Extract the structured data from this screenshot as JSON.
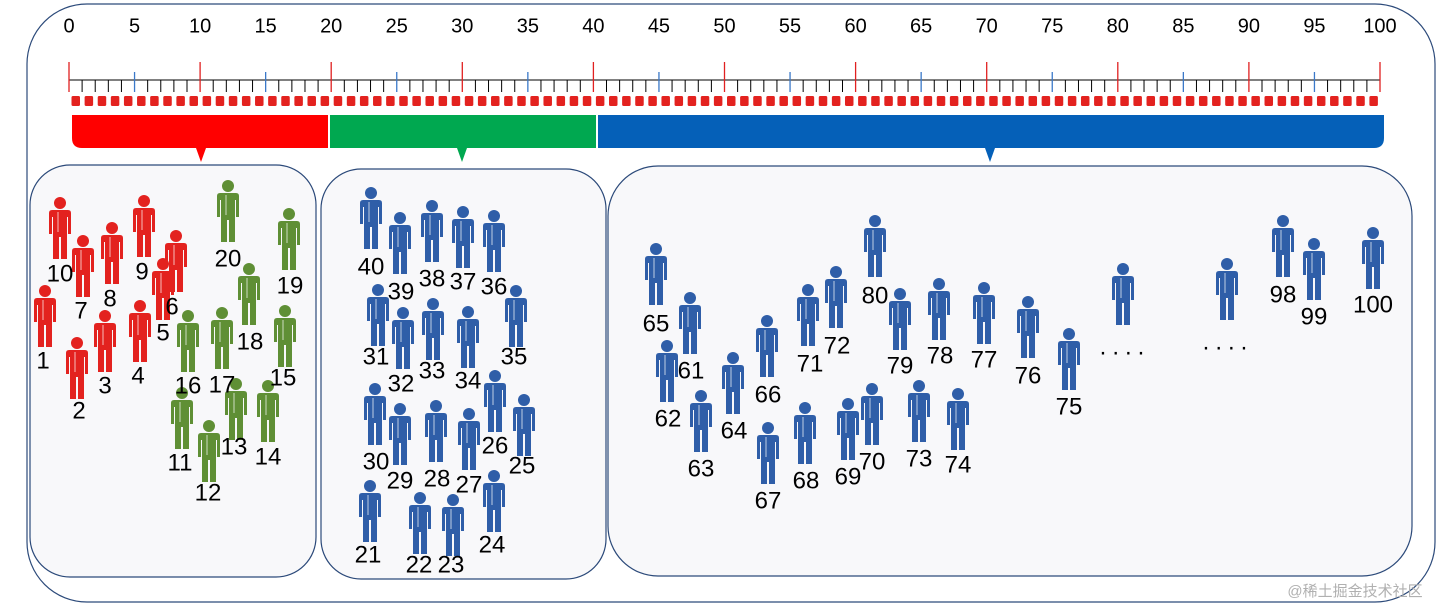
{
  "ruler": {
    "range": [
      0,
      100
    ],
    "ticks": [
      0,
      5,
      10,
      15,
      20,
      25,
      30,
      35,
      40,
      45,
      50,
      55,
      60,
      65,
      70,
      75,
      80,
      85,
      90,
      95,
      100
    ]
  },
  "groups": [
    {
      "color": "#e3221f",
      "people": [
        1,
        2,
        3,
        4,
        5,
        6,
        7,
        8,
        9,
        10
      ]
    },
    {
      "color": "#5f8f35",
      "people": [
        11,
        12,
        13,
        14,
        15,
        16,
        17,
        18,
        19,
        20
      ]
    },
    {
      "color": "#2f5ea8",
      "people": [
        21,
        22,
        23,
        24,
        25,
        26,
        27,
        28,
        29,
        30,
        31,
        32,
        33,
        34,
        35,
        36,
        37,
        38,
        39,
        40
      ]
    },
    {
      "color": "#2f5ea8",
      "people": [
        61,
        62,
        63,
        64,
        65,
        66,
        67,
        68,
        69,
        70,
        71,
        72,
        73,
        74,
        75,
        76,
        77,
        78,
        79,
        80,
        98,
        99,
        100
      ]
    }
  ],
  "ellipses": [
    "....",
    "...."
  ],
  "watermark": "@稀土掘金技术社区"
}
